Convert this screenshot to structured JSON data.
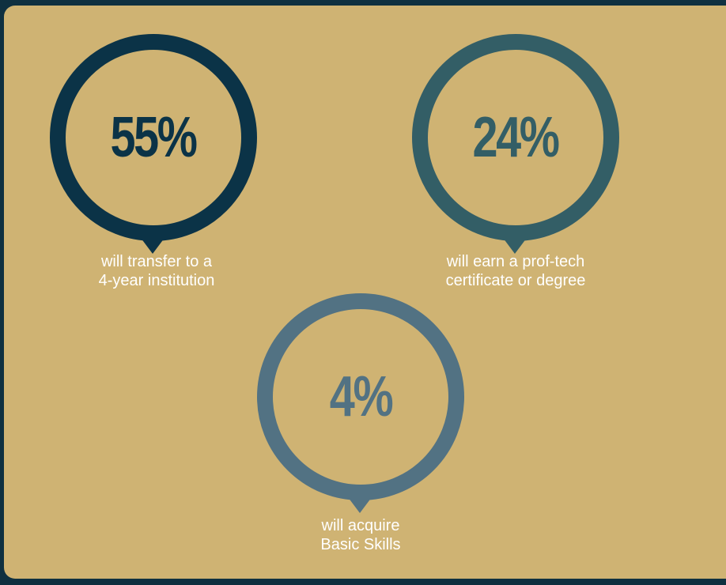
{
  "colors": {
    "page_background": "#0f3040",
    "panel_background": "#cfb373",
    "stat1": "#0b3347",
    "stat2": "#335e66",
    "stat3": "#527283",
    "caption_text": "#ffffff"
  },
  "stats": [
    {
      "value": "55%",
      "caption_line1": "will transfer to a",
      "caption_line2": "4-year institution"
    },
    {
      "value": "24%",
      "caption_line1": "will earn a prof-tech",
      "caption_line2": "certificate or degree"
    },
    {
      "value": "4%",
      "caption_line1": "will acquire",
      "caption_line2": "Basic Skills"
    }
  ]
}
